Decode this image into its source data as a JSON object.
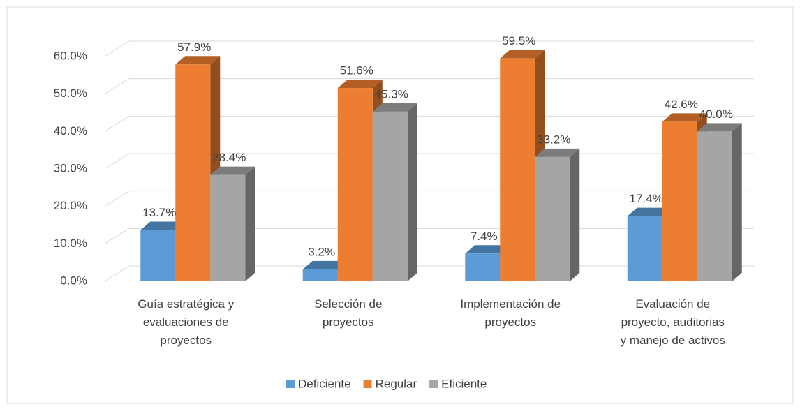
{
  "chart_data": {
    "type": "bar3d",
    "categories": [
      "Guía estratégica y\nevaluaciones de\nproyectos",
      "Selección de\nproyectos",
      "Implementación de\nproyectos",
      "Evaluación de\nproyecto, auditorias\ny manejo de activos"
    ],
    "series": [
      {
        "name": "Deficiente",
        "color": "#5b9bd5",
        "values": [
          13.7,
          3.2,
          7.4,
          17.4
        ],
        "value_labels": [
          "13.7%",
          "3.2%",
          "7.4%",
          "17.4%"
        ]
      },
      {
        "name": "Regular",
        "color": "#ed7d31",
        "values": [
          57.9,
          51.6,
          59.5,
          42.6
        ],
        "value_labels": [
          "57.9%",
          "51.6%",
          "59.5%",
          "42.6%"
        ]
      },
      {
        "name": "Eficiente",
        "color": "#a5a5a5",
        "values": [
          28.4,
          45.3,
          33.2,
          40.0
        ],
        "value_labels": [
          "28.4%",
          "45.3%",
          "33.2%",
          "40.0%"
        ]
      }
    ],
    "ylim": [
      0,
      60
    ],
    "yticks": [
      {
        "value": 0,
        "label": "0.0%"
      },
      {
        "value": 10,
        "label": "10.0%"
      },
      {
        "value": 20,
        "label": "20.0%"
      },
      {
        "value": 30,
        "label": "30.0%"
      },
      {
        "value": 40,
        "label": "40.0%"
      },
      {
        "value": 50,
        "label": "50.0%"
      },
      {
        "value": 60,
        "label": "60.0%"
      }
    ],
    "grid": true,
    "legend": "bottom"
  }
}
